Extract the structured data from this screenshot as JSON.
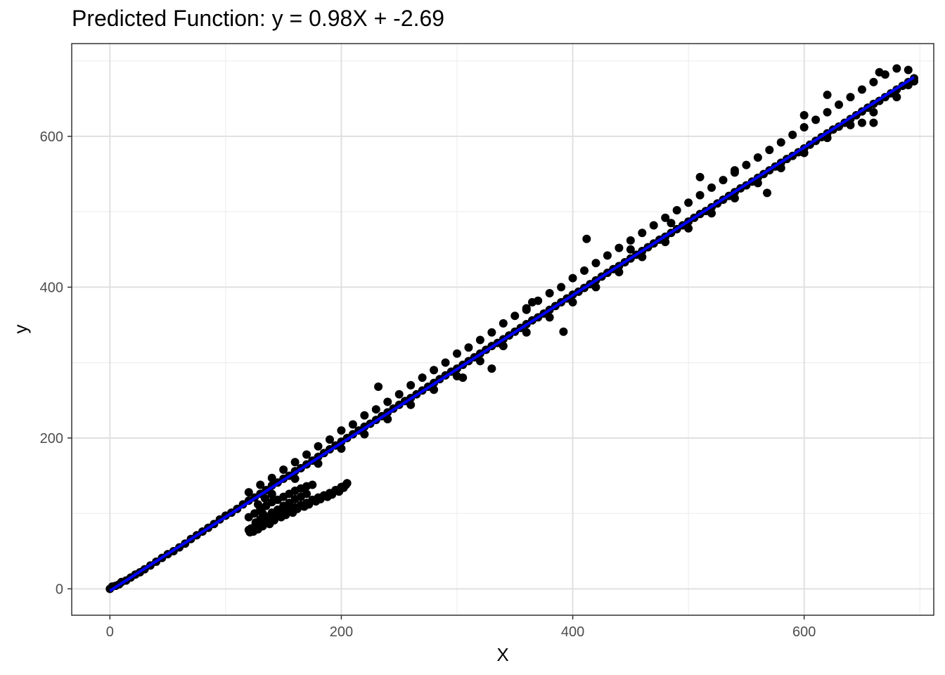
{
  "chart_data": {
    "type": "scatter",
    "title": "Predicted Function: y = 0.98X + -2.69",
    "xlabel": "X",
    "ylabel": "y",
    "xlim": [
      -33,
      712
    ],
    "ylim": [
      -35,
      723
    ],
    "x_ticks": [
      "0",
      "200",
      "400",
      "600"
    ],
    "x_tick_values": [
      0,
      200,
      400,
      600
    ],
    "y_ticks": [
      "0",
      "200",
      "400",
      "600"
    ],
    "y_tick_values": [
      0,
      200,
      400,
      600
    ],
    "grid": true,
    "legend": "none",
    "fit_line": {
      "slope": 0.98,
      "intercept": -2.69,
      "x_range": [
        0,
        695
      ],
      "color": "#0000ff"
    },
    "point_color": "#000000",
    "series": [
      {
        "points": [
          [
            0,
            0
          ],
          [
            2,
            3
          ],
          [
            5,
            4
          ],
          [
            8,
            6
          ],
          [
            10,
            9
          ],
          [
            14,
            11
          ],
          [
            18,
            15
          ],
          [
            22,
            19
          ],
          [
            26,
            22
          ],
          [
            30,
            26
          ],
          [
            35,
            31
          ],
          [
            40,
            36
          ],
          [
            45,
            41
          ],
          [
            50,
            46
          ],
          [
            55,
            50
          ],
          [
            60,
            55
          ],
          [
            65,
            60
          ],
          [
            70,
            66
          ],
          [
            75,
            71
          ],
          [
            80,
            76
          ],
          [
            85,
            81
          ],
          [
            90,
            86
          ],
          [
            95,
            92
          ],
          [
            100,
            97
          ],
          [
            105,
            101
          ],
          [
            110,
            106
          ],
          [
            115,
            112
          ],
          [
            120,
            117
          ],
          [
            125,
            121
          ],
          [
            130,
            126
          ],
          [
            135,
            131
          ],
          [
            140,
            137
          ],
          [
            145,
            141
          ],
          [
            150,
            146
          ],
          [
            155,
            150
          ],
          [
            160,
            156
          ],
          [
            165,
            160
          ],
          [
            170,
            165
          ],
          [
            175,
            170
          ],
          [
            180,
            175
          ],
          [
            185,
            180
          ],
          [
            190,
            185
          ],
          [
            195,
            190
          ],
          [
            200,
            195
          ],
          [
            205,
            200
          ],
          [
            210,
            205
          ],
          [
            215,
            210
          ],
          [
            220,
            215
          ],
          [
            225,
            219
          ],
          [
            230,
            224
          ],
          [
            235,
            229
          ],
          [
            240,
            234
          ],
          [
            245,
            239
          ],
          [
            250,
            244
          ],
          [
            255,
            249
          ],
          [
            260,
            253
          ],
          [
            265,
            258
          ],
          [
            270,
            263
          ],
          [
            275,
            268
          ],
          [
            280,
            273
          ],
          [
            285,
            278
          ],
          [
            290,
            283
          ],
          [
            295,
            288
          ],
          [
            300,
            292
          ],
          [
            305,
            297
          ],
          [
            310,
            302
          ],
          [
            315,
            307
          ],
          [
            320,
            312
          ],
          [
            325,
            317
          ],
          [
            330,
            322
          ],
          [
            335,
            326
          ],
          [
            340,
            331
          ],
          [
            345,
            336
          ],
          [
            350,
            341
          ],
          [
            355,
            346
          ],
          [
            360,
            351
          ],
          [
            365,
            356
          ],
          [
            370,
            360
          ],
          [
            375,
            365
          ],
          [
            380,
            370
          ],
          [
            385,
            375
          ],
          [
            390,
            380
          ],
          [
            395,
            385
          ],
          [
            400,
            390
          ],
          [
            405,
            394
          ],
          [
            410,
            399
          ],
          [
            415,
            404
          ],
          [
            420,
            409
          ],
          [
            425,
            414
          ],
          [
            430,
            419
          ],
          [
            435,
            424
          ],
          [
            440,
            428
          ],
          [
            445,
            433
          ],
          [
            450,
            438
          ],
          [
            455,
            443
          ],
          [
            460,
            448
          ],
          [
            465,
            453
          ],
          [
            470,
            458
          ],
          [
            475,
            463
          ],
          [
            480,
            467
          ],
          [
            485,
            472
          ],
          [
            490,
            477
          ],
          [
            495,
            482
          ],
          [
            500,
            487
          ],
          [
            505,
            492
          ],
          [
            510,
            497
          ],
          [
            515,
            501
          ],
          [
            520,
            506
          ],
          [
            525,
            511
          ],
          [
            530,
            516
          ],
          [
            535,
            521
          ],
          [
            540,
            526
          ],
          [
            545,
            531
          ],
          [
            550,
            535
          ],
          [
            555,
            540
          ],
          [
            560,
            545
          ],
          [
            565,
            550
          ],
          [
            570,
            555
          ],
          [
            575,
            560
          ],
          [
            580,
            565
          ],
          [
            585,
            570
          ],
          [
            590,
            574
          ],
          [
            595,
            579
          ],
          [
            600,
            584
          ],
          [
            605,
            589
          ],
          [
            610,
            594
          ],
          [
            615,
            599
          ],
          [
            620,
            604
          ],
          [
            625,
            609
          ],
          [
            630,
            613
          ],
          [
            635,
            618
          ],
          [
            640,
            623
          ],
          [
            645,
            628
          ],
          [
            650,
            633
          ],
          [
            655,
            638
          ],
          [
            660,
            643
          ],
          [
            665,
            647
          ],
          [
            670,
            652
          ],
          [
            675,
            657
          ],
          [
            680,
            662
          ],
          [
            685,
            667
          ],
          [
            690,
            672
          ],
          [
            695,
            677
          ],
          [
            120,
            128
          ],
          [
            130,
            138
          ],
          [
            140,
            147
          ],
          [
            150,
            158
          ],
          [
            160,
            168
          ],
          [
            170,
            178
          ],
          [
            180,
            189
          ],
          [
            190,
            198
          ],
          [
            200,
            210
          ],
          [
            210,
            218
          ],
          [
            220,
            230
          ],
          [
            230,
            238
          ],
          [
            240,
            248
          ],
          [
            250,
            258
          ],
          [
            260,
            270
          ],
          [
            270,
            280
          ],
          [
            280,
            290
          ],
          [
            290,
            300
          ],
          [
            300,
            312
          ],
          [
            310,
            320
          ],
          [
            320,
            330
          ],
          [
            330,
            340
          ],
          [
            340,
            352
          ],
          [
            350,
            362
          ],
          [
            360,
            372
          ],
          [
            370,
            382
          ],
          [
            380,
            392
          ],
          [
            390,
            400
          ],
          [
            400,
            412
          ],
          [
            410,
            422
          ],
          [
            420,
            432
          ],
          [
            430,
            442
          ],
          [
            440,
            452
          ],
          [
            450,
            462
          ],
          [
            460,
            472
          ],
          [
            470,
            482
          ],
          [
            480,
            492
          ],
          [
            490,
            502
          ],
          [
            500,
            512
          ],
          [
            510,
            522
          ],
          [
            520,
            532
          ],
          [
            530,
            542
          ],
          [
            540,
            552
          ],
          [
            550,
            562
          ],
          [
            560,
            572
          ],
          [
            570,
            582
          ],
          [
            580,
            592
          ],
          [
            590,
            602
          ],
          [
            600,
            612
          ],
          [
            610,
            622
          ],
          [
            620,
            632
          ],
          [
            630,
            642
          ],
          [
            640,
            652
          ],
          [
            650,
            662
          ],
          [
            660,
            672
          ],
          [
            670,
            682
          ],
          [
            140,
            125
          ],
          [
            160,
            146
          ],
          [
            180,
            166
          ],
          [
            200,
            186
          ],
          [
            220,
            205
          ],
          [
            240,
            225
          ],
          [
            260,
            244
          ],
          [
            280,
            264
          ],
          [
            300,
            282
          ],
          [
            320,
            302
          ],
          [
            340,
            322
          ],
          [
            360,
            340
          ],
          [
            380,
            360
          ],
          [
            400,
            380
          ],
          [
            420,
            400
          ],
          [
            440,
            420
          ],
          [
            460,
            440
          ],
          [
            480,
            460
          ],
          [
            500,
            478
          ],
          [
            520,
            498
          ],
          [
            540,
            518
          ],
          [
            560,
            538
          ],
          [
            580,
            558
          ],
          [
            600,
            578
          ],
          [
            620,
            598
          ],
          [
            640,
            615
          ],
          [
            660,
            632
          ],
          [
            680,
            652
          ],
          [
            690,
            668
          ],
          [
            120,
            78
          ],
          [
            121,
            75
          ],
          [
            122,
            80
          ],
          [
            124,
            76
          ],
          [
            125,
            82
          ],
          [
            128,
            79
          ],
          [
            130,
            86
          ],
          [
            132,
            83
          ],
          [
            135,
            89
          ],
          [
            138,
            86
          ],
          [
            140,
            94
          ],
          [
            142,
            91
          ],
          [
            145,
            97
          ],
          [
            148,
            95
          ],
          [
            150,
            100
          ],
          [
            152,
            98
          ],
          [
            155,
            104
          ],
          [
            158,
            101
          ],
          [
            160,
            108
          ],
          [
            162,
            106
          ],
          [
            165,
            111
          ],
          [
            168,
            109
          ],
          [
            170,
            114
          ],
          [
            172,
            112
          ],
          [
            175,
            118
          ],
          [
            178,
            116
          ],
          [
            180,
            121
          ],
          [
            182,
            119
          ],
          [
            185,
            124
          ],
          [
            188,
            122
          ],
          [
            190,
            127
          ],
          [
            192,
            125
          ],
          [
            195,
            131
          ],
          [
            198,
            129
          ],
          [
            200,
            135
          ],
          [
            202,
            134
          ],
          [
            205,
            140
          ],
          [
            204,
            138
          ],
          [
            120,
            95
          ],
          [
            125,
            100
          ],
          [
            130,
            106
          ],
          [
            135,
            110
          ],
          [
            140,
            115
          ],
          [
            145,
            118
          ],
          [
            150,
            122
          ],
          [
            155,
            126
          ],
          [
            160,
            130
          ],
          [
            165,
            133
          ],
          [
            170,
            136
          ],
          [
            175,
            138
          ],
          [
            130,
            92
          ],
          [
            135,
            96
          ],
          [
            140,
            101
          ],
          [
            145,
            105
          ],
          [
            150,
            110
          ],
          [
            155,
            114
          ],
          [
            160,
            119
          ],
          [
            165,
            122
          ],
          [
            170,
            126
          ],
          [
            128,
            112
          ],
          [
            134,
            120
          ],
          [
            140,
            126
          ],
          [
            126,
            88
          ],
          [
            132,
            100
          ],
          [
            232,
            268
          ],
          [
            412,
            464
          ],
          [
            485,
            485
          ],
          [
            510,
            546
          ],
          [
            568,
            525
          ],
          [
            650,
            618
          ],
          [
            660,
            618
          ],
          [
            392,
            341
          ],
          [
            330,
            292
          ],
          [
            360,
            370
          ],
          [
            305,
            280
          ],
          [
            600,
            628
          ],
          [
            620,
            655
          ],
          [
            665,
            685
          ],
          [
            680,
            690
          ],
          [
            690,
            688
          ],
          [
            695,
            673
          ],
          [
            365,
            380
          ],
          [
            450,
            450
          ],
          [
            540,
            555
          ]
        ]
      }
    ]
  }
}
